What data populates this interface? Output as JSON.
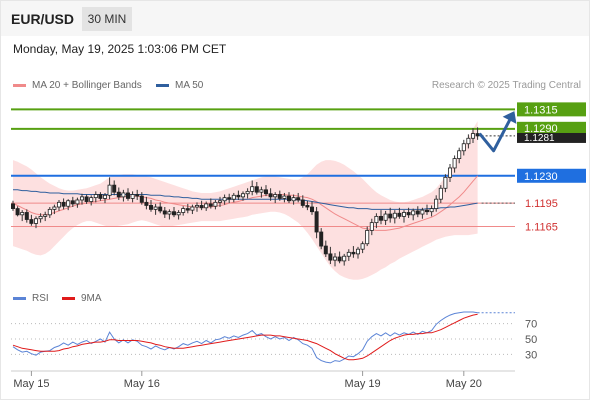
{
  "header": {
    "symbol": "EUR/USD",
    "timeframe": "30 MIN",
    "datetime": "Monday, May 19, 2025 1:03:06 PM CET"
  },
  "legend": {
    "bollinger": {
      "label": "MA 20 + Bollinger Bands",
      "color": "#f08a8a"
    },
    "ma50": {
      "label": "MA 50",
      "color": "#2f5f9e"
    },
    "credit": "Research © 2025 Trading Central"
  },
  "rsi_legend": {
    "rsi": {
      "label": "RSI",
      "color": "#5b84d6"
    },
    "ma9": {
      "label": "9MA",
      "color": "#e01b1b"
    }
  },
  "chart_data": {
    "type": "candlestick",
    "price_range": [
      1.1094,
      1.1327
    ],
    "current_price": "1.1281",
    "ohlc": [
      [
        1.1194,
        1.1198,
        1.1185,
        1.1188
      ],
      [
        1.1188,
        1.1191,
        1.1178,
        1.118
      ],
      [
        1.118,
        1.1186,
        1.1172,
        1.1183
      ],
      [
        1.1183,
        1.1187,
        1.117,
        1.1174
      ],
      [
        1.1174,
        1.118,
        1.1166,
        1.1169
      ],
      [
        1.1169,
        1.1178,
        1.1163,
        1.1175
      ],
      [
        1.1175,
        1.1182,
        1.117,
        1.1178
      ],
      [
        1.1178,
        1.1184,
        1.1172,
        1.118
      ],
      [
        1.118,
        1.119,
        1.1176,
        1.1187
      ],
      [
        1.1187,
        1.1193,
        1.1181,
        1.119
      ],
      [
        1.119,
        1.1199,
        1.1185,
        1.1196
      ],
      [
        1.1196,
        1.1201,
        1.1187,
        1.1191
      ],
      [
        1.1191,
        1.12,
        1.1186,
        1.1198
      ],
      [
        1.1198,
        1.1203,
        1.119,
        1.1194
      ],
      [
        1.1194,
        1.1202,
        1.1189,
        1.1199
      ],
      [
        1.1199,
        1.1207,
        1.1193,
        1.1203
      ],
      [
        1.1203,
        1.1206,
        1.1194,
        1.1197
      ],
      [
        1.1197,
        1.1205,
        1.1192,
        1.1202
      ],
      [
        1.1202,
        1.121,
        1.1196,
        1.1206
      ],
      [
        1.1206,
        1.1209,
        1.1198,
        1.1201
      ],
      [
        1.1201,
        1.1208,
        1.1195,
        1.1205
      ],
      [
        1.1205,
        1.1228,
        1.12,
        1.1218
      ],
      [
        1.1218,
        1.1224,
        1.1205,
        1.1209
      ],
      [
        1.1209,
        1.1215,
        1.1199,
        1.1203
      ],
      [
        1.1203,
        1.1212,
        1.1197,
        1.1208
      ],
      [
        1.1208,
        1.1214,
        1.1198,
        1.1201
      ],
      [
        1.1201,
        1.121,
        1.1196,
        1.1206
      ],
      [
        1.1206,
        1.1212,
        1.1199,
        1.1204
      ],
      [
        1.1204,
        1.1209,
        1.1193,
        1.1196
      ],
      [
        1.1196,
        1.1203,
        1.1187,
        1.1192
      ],
      [
        1.1192,
        1.1199,
        1.1184,
        1.1187
      ],
      [
        1.1187,
        1.1194,
        1.118,
        1.119
      ],
      [
        1.119,
        1.1196,
        1.1182,
        1.1185
      ],
      [
        1.1185,
        1.119,
        1.1176,
        1.1181
      ],
      [
        1.1181,
        1.1187,
        1.1174,
        1.1184
      ],
      [
        1.1184,
        1.119,
        1.1177,
        1.118
      ],
      [
        1.118,
        1.1186,
        1.1174,
        1.1183
      ],
      [
        1.1183,
        1.1191,
        1.1179,
        1.1188
      ],
      [
        1.1188,
        1.1194,
        1.1182,
        1.1186
      ],
      [
        1.1186,
        1.1193,
        1.1181,
        1.119
      ],
      [
        1.119,
        1.1196,
        1.1184,
        1.1192
      ],
      [
        1.1192,
        1.1198,
        1.1186,
        1.1189
      ],
      [
        1.1189,
        1.1197,
        1.1185,
        1.1194
      ],
      [
        1.1194,
        1.1201,
        1.1188,
        1.1191
      ],
      [
        1.1191,
        1.1199,
        1.1187,
        1.1196
      ],
      [
        1.1196,
        1.1203,
        1.119,
        1.1198
      ],
      [
        1.1198,
        1.1206,
        1.1193,
        1.1202
      ],
      [
        1.1202,
        1.1207,
        1.1195,
        1.12
      ],
      [
        1.12,
        1.1208,
        1.1196,
        1.1205
      ],
      [
        1.1205,
        1.1211,
        1.1199,
        1.1203
      ],
      [
        1.1203,
        1.121,
        1.1198,
        1.1207
      ],
      [
        1.1207,
        1.1214,
        1.1201,
        1.121
      ],
      [
        1.121,
        1.1224,
        1.1205,
        1.1216
      ],
      [
        1.1216,
        1.1222,
        1.1206,
        1.1209
      ],
      [
        1.1209,
        1.1216,
        1.1202,
        1.1212
      ],
      [
        1.1212,
        1.1218,
        1.1204,
        1.1207
      ],
      [
        1.1207,
        1.1214,
        1.1198,
        1.1203
      ],
      [
        1.1203,
        1.1209,
        1.1195,
        1.1206
      ],
      [
        1.1206,
        1.1211,
        1.1198,
        1.1201
      ],
      [
        1.1201,
        1.1208,
        1.1196,
        1.1204
      ],
      [
        1.1204,
        1.1209,
        1.1195,
        1.1198
      ],
      [
        1.1198,
        1.1206,
        1.1193,
        1.1202
      ],
      [
        1.1202,
        1.1208,
        1.1196,
        1.1199
      ],
      [
        1.1199,
        1.1205,
        1.1189,
        1.1192
      ],
      [
        1.1192,
        1.1198,
        1.1186,
        1.119
      ],
      [
        1.119,
        1.1197,
        1.118,
        1.1184
      ],
      [
        1.1184,
        1.119,
        1.115,
        1.1158
      ],
      [
        1.1158,
        1.1163,
        1.1136,
        1.114
      ],
      [
        1.114,
        1.1147,
        1.1126,
        1.113
      ],
      [
        1.113,
        1.1139,
        1.1117,
        1.1122
      ],
      [
        1.1122,
        1.1131,
        1.1114,
        1.1126
      ],
      [
        1.1126,
        1.1133,
        1.1118,
        1.1121
      ],
      [
        1.1121,
        1.113,
        1.1115,
        1.1127
      ],
      [
        1.1127,
        1.1136,
        1.1121,
        1.1132
      ],
      [
        1.1132,
        1.114,
        1.1125,
        1.113
      ],
      [
        1.113,
        1.1139,
        1.1124,
        1.1136
      ],
      [
        1.1136,
        1.1146,
        1.1131,
        1.1143
      ],
      [
        1.1143,
        1.1165,
        1.114,
        1.116
      ],
      [
        1.116,
        1.1175,
        1.1154,
        1.117
      ],
      [
        1.117,
        1.1182,
        1.1163,
        1.1178
      ],
      [
        1.1178,
        1.1186,
        1.1168,
        1.1173
      ],
      [
        1.1173,
        1.1185,
        1.1167,
        1.1181
      ],
      [
        1.1181,
        1.1189,
        1.117,
        1.1176
      ],
      [
        1.1176,
        1.1186,
        1.1169,
        1.1182
      ],
      [
        1.1182,
        1.1189,
        1.1175,
        1.1178
      ],
      [
        1.1178,
        1.1186,
        1.117,
        1.1183
      ],
      [
        1.1183,
        1.1189,
        1.1176,
        1.118
      ],
      [
        1.118,
        1.1188,
        1.1173,
        1.1185
      ],
      [
        1.1185,
        1.1191,
        1.1177,
        1.1181
      ],
      [
        1.1181,
        1.1189,
        1.1175,
        1.1186
      ],
      [
        1.1186,
        1.1193,
        1.118,
        1.1184
      ],
      [
        1.1184,
        1.1192,
        1.1178,
        1.1188
      ],
      [
        1.1188,
        1.1205,
        1.1184,
        1.12
      ],
      [
        1.12,
        1.1218,
        1.1195,
        1.1214
      ],
      [
        1.1214,
        1.1232,
        1.1209,
        1.1228
      ],
      [
        1.1228,
        1.1245,
        1.1222,
        1.124
      ],
      [
        1.124,
        1.1256,
        1.1234,
        1.1252
      ],
      [
        1.1252,
        1.1266,
        1.1246,
        1.1262
      ],
      [
        1.1262,
        1.1276,
        1.1256,
        1.1271
      ],
      [
        1.1271,
        1.1283,
        1.1265,
        1.1278
      ],
      [
        1.1278,
        1.1291,
        1.1272,
        1.1284
      ],
      [
        1.1284,
        1.1292,
        1.1276,
        1.1281
      ]
    ],
    "ma20": [
      1.1195,
      1.1192,
      1.1189,
      1.1186,
      1.1183,
      1.1181,
      1.118,
      1.118,
      1.1181,
      1.1183,
      1.1185,
      1.1187,
      1.1189,
      1.1191,
      1.1193,
      1.1194,
      1.1195,
      1.1196,
      1.1197,
      1.1198,
      1.1199,
      1.12,
      1.1201,
      1.1202,
      1.1203,
      1.1204,
      1.1204,
      1.1204,
      1.1203,
      1.1202,
      1.1201,
      1.1199,
      1.1198,
      1.1196,
      1.1195,
      1.1194,
      1.1193,
      1.1192,
      1.1191,
      1.119,
      1.119,
      1.119,
      1.119,
      1.119,
      1.1191,
      1.1192,
      1.1193,
      1.1195,
      1.1196,
      1.1197,
      1.1199,
      1.12,
      1.1202,
      1.1203,
      1.1204,
      1.1205,
      1.1205,
      1.1206,
      1.1206,
      1.1206,
      1.1205,
      1.1205,
      1.1204,
      1.1203,
      1.1202,
      1.12,
      1.1197,
      1.1193,
      1.1189,
      1.1185,
      1.1181,
      1.1178,
      1.1175,
      1.1172,
      1.1169,
      1.1166,
      1.1163,
      1.1162,
      1.1161,
      1.116,
      1.116,
      1.116,
      1.1161,
      1.1162,
      1.1163,
      1.1165,
      1.1167,
      1.1169,
      1.1171,
      1.1173,
      1.1175,
      1.1177,
      1.118,
      1.1184,
      1.1188,
      1.1193,
      1.1198,
      1.1203,
      1.1209,
      1.1216,
      1.1223,
      1.123
    ],
    "ma50": [
      1.1212,
      1.1212,
      1.1211,
      1.1211,
      1.121,
      1.121,
      1.1209,
      1.1209,
      1.1208,
      1.1208,
      1.1208,
      1.1207,
      1.1207,
      1.1207,
      1.1207,
      1.1206,
      1.1206,
      1.1206,
      1.1206,
      1.1206,
      1.1206,
      1.1206,
      1.1206,
      1.1206,
      1.1206,
      1.1206,
      1.1206,
      1.1206,
      1.1206,
      1.1206,
      1.1205,
      1.1205,
      1.1205,
      1.1204,
      1.1204,
      1.1203,
      1.1203,
      1.1202,
      1.1202,
      1.1201,
      1.1201,
      1.12,
      1.12,
      1.12,
      1.12,
      1.12,
      1.12,
      1.12,
      1.12,
      1.12,
      1.12,
      1.12,
      1.12,
      1.12,
      1.12,
      1.12,
      1.12,
      1.12,
      1.12,
      1.12,
      1.12,
      1.12,
      1.1199,
      1.1199,
      1.1198,
      1.1197,
      1.1196,
      1.1195,
      1.1194,
      1.1193,
      1.1192,
      1.1191,
      1.119,
      1.1189,
      1.1189,
      1.1188,
      1.1188,
      1.1188,
      1.1187,
      1.1187,
      1.1187,
      1.1187,
      1.1187,
      1.1187,
      1.1187,
      1.1187,
      1.1187,
      1.1187,
      1.1187,
      1.1187,
      1.1188,
      1.1188,
      1.1188,
      1.1189,
      1.1189,
      1.119,
      1.119,
      1.1191,
      1.1192,
      1.1193,
      1.1194,
      1.1195
    ],
    "bb_upper": [
      1.125,
      1.1248,
      1.1245,
      1.1242,
      1.1238,
      1.1233,
      1.1228,
      1.1224,
      1.122,
      1.1217,
      1.1214,
      1.1212,
      1.1211,
      1.1211,
      1.1212,
      1.1213,
      1.1214,
      1.1216,
      1.1218,
      1.122,
      1.1224,
      1.1228,
      1.123,
      1.1231,
      1.1232,
      1.1232,
      1.1232,
      1.1231,
      1.123,
      1.1229,
      1.1228,
      1.1226,
      1.1224,
      1.1222,
      1.122,
      1.1218,
      1.1216,
      1.1214,
      1.1212,
      1.121,
      1.1209,
      1.1208,
      1.1208,
      1.1208,
      1.1209,
      1.121,
      1.1212,
      1.1214,
      1.1216,
      1.1218,
      1.122,
      1.1222,
      1.1224,
      1.1226,
      1.1228,
      1.1229,
      1.1229,
      1.1229,
      1.1228,
      1.1227,
      1.1226,
      1.1225,
      1.1225,
      1.1228,
      1.1232,
      1.1238,
      1.1244,
      1.1248,
      1.125,
      1.125,
      1.1249,
      1.1247,
      1.1244,
      1.124,
      1.1236,
      1.1231,
      1.1226,
      1.122,
      1.1214,
      1.1209,
      1.1205,
      1.1202,
      1.1199,
      1.1197,
      1.1196,
      1.1196,
      1.1197,
      1.1199,
      1.1201,
      1.1203,
      1.1206,
      1.1209,
      1.1214,
      1.1221,
      1.1229,
      1.1238,
      1.1248,
      1.1258,
      1.1268,
      1.1279,
      1.129,
      1.13
    ],
    "bb_lower": [
      1.114,
      1.1138,
      1.1136,
      1.1134,
      1.1131,
      1.1129,
      1.1128,
      1.113,
      1.1134,
      1.114,
      1.1146,
      1.1152,
      1.1158,
      1.1163,
      1.1167,
      1.117,
      1.1172,
      1.1172,
      1.117,
      1.1168,
      1.1166,
      1.1165,
      1.1165,
      1.1166,
      1.1167,
      1.1168,
      1.117,
      1.1172,
      1.1173,
      1.1172,
      1.117,
      1.1168,
      1.1166,
      1.1165,
      1.1165,
      1.1166,
      1.1167,
      1.1168,
      1.1169,
      1.117,
      1.1171,
      1.1172,
      1.1172,
      1.1172,
      1.1172,
      1.1172,
      1.1173,
      1.1174,
      1.1175,
      1.1176,
      1.1177,
      1.1178,
      1.118,
      1.1181,
      1.1182,
      1.1183,
      1.1184,
      1.1184,
      1.1183,
      1.1181,
      1.1178,
      1.1174,
      1.117,
      1.1164,
      1.1157,
      1.1149,
      1.114,
      1.1131,
      1.1122,
      1.1114,
      1.1108,
      1.1103,
      1.11,
      1.1098,
      1.1097,
      1.1097,
      1.1098,
      1.11,
      1.1103,
      1.1106,
      1.111,
      1.1113,
      1.1117,
      1.112,
      1.1124,
      1.1127,
      1.113,
      1.1133,
      1.1136,
      1.1139,
      1.1142,
      1.1145,
      1.1148,
      1.115,
      1.1152,
      1.1153,
      1.1154,
      1.1154,
      1.1154,
      1.1154,
      1.1155,
      1.1156
    ],
    "levels": [
      {
        "value": 1.1315,
        "label": "1.1315",
        "kind": "resistance",
        "color": "#57a012"
      },
      {
        "value": 1.129,
        "label": "1.1290",
        "kind": "resistance",
        "color": "#57a012"
      },
      {
        "value": 1.123,
        "label": "1.1230",
        "kind": "pivot",
        "color": "#1f6fe0"
      },
      {
        "value": 1.1195,
        "label": "1.1195",
        "kind": "support",
        "color": "#f08a8a"
      },
      {
        "value": 1.1165,
        "label": "1.1165",
        "kind": "support",
        "color": "#f08a8a"
      }
    ],
    "scenario": [
      1.1284,
      1.1262,
      1.1306
    ],
    "x_labels": [
      {
        "index": 4,
        "label": "May 15"
      },
      {
        "index": 28,
        "label": "May 16"
      },
      {
        "index": 76,
        "label": "May 19"
      },
      {
        "index": 98,
        "label": "May 20"
      }
    ],
    "rsi": {
      "range": [
        15,
        85
      ],
      "ticks": [
        70,
        50,
        30
      ],
      "values": [
        40,
        36,
        33,
        34,
        31,
        29,
        33,
        34,
        35,
        39,
        41,
        45,
        42,
        46,
        43,
        46,
        48,
        44,
        47,
        50,
        46,
        59,
        50,
        45,
        49,
        45,
        49,
        47,
        42,
        40,
        37,
        41,
        38,
        36,
        39,
        37,
        40,
        44,
        42,
        45,
        47,
        44,
        48,
        45,
        49,
        50,
        53,
        51,
        54,
        52,
        55,
        57,
        61,
        55,
        57,
        53,
        50,
        53,
        50,
        52,
        48,
        52,
        49,
        44,
        42,
        38,
        26,
        22,
        20,
        19,
        22,
        21,
        24,
        28,
        27,
        31,
        36,
        47,
        53,
        57,
        54,
        58,
        54,
        58,
        55,
        58,
        56,
        59,
        56,
        60,
        58,
        61,
        69,
        74,
        78,
        81,
        83,
        84,
        85,
        85,
        85,
        84
      ],
      "ma9": [
        42,
        40,
        38,
        37,
        36,
        35,
        34,
        34,
        34,
        34,
        35,
        37,
        38,
        40,
        41,
        43,
        44,
        45,
        46,
        46,
        47,
        49,
        49,
        48,
        48,
        48,
        48,
        48,
        47,
        46,
        45,
        43,
        42,
        40,
        39,
        38,
        38,
        38,
        39,
        40,
        41,
        42,
        43,
        44,
        45,
        46,
        47,
        48,
        49,
        50,
        51,
        52,
        53,
        54,
        55,
        55,
        55,
        54,
        54,
        53,
        52,
        51,
        50,
        49,
        48,
        46,
        44,
        41,
        38,
        35,
        31,
        28,
        25,
        23,
        23,
        24,
        25,
        28,
        32,
        36,
        40,
        44,
        48,
        51,
        53,
        55,
        56,
        56,
        57,
        57,
        58,
        58,
        60,
        62,
        65,
        68,
        71,
        74,
        77,
        79,
        81,
        82
      ]
    }
  }
}
